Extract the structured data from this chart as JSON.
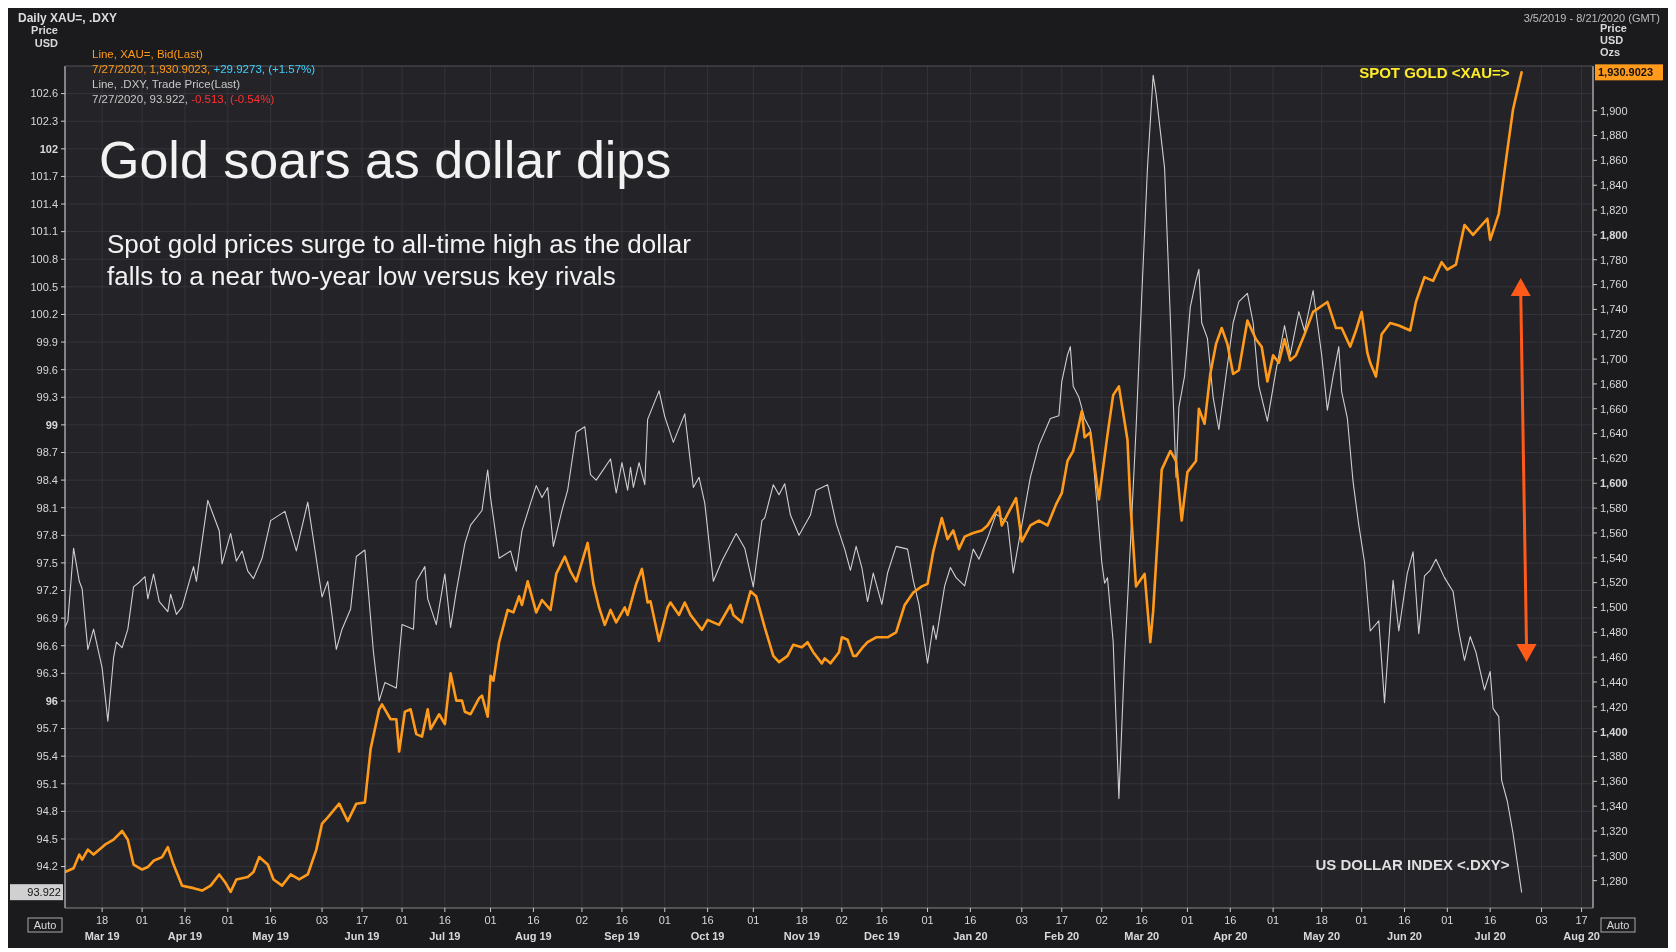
{
  "chart_data": {
    "type": "line",
    "title": "Gold soars as dollar dips",
    "subtitle": "Spot gold prices surge to all-time high as the dollar falls to a near two-year low versus key rivals",
    "ylabel": "Price USD",
    "y2label": "Price USD Ozs",
    "grid": true,
    "annotations": [
      "Daily XAU=, .DXY",
      "3/5/2019 - 8/21/2020 (GMT)",
      "Line, XAU=, Bid(Last)",
      "7/27/2020, 1,930.9023, +29.9273, (+1.57%)",
      "Line, .DXY, Trade Price(Last)",
      "7/27/2020, 93.922, -0.513, (-0.54%)",
      "93.922",
      "1,930.9023",
      "Auto",
      "Auto"
    ],
    "xlim": [
      "2019-03-05",
      "2020-08-21"
    ],
    "xticks": [
      {
        "value": "2019-03-18",
        "label": "18\nMar 19"
      },
      {
        "value": "2019-04-01",
        "label": "01"
      },
      {
        "value": "2019-04-16",
        "label": "16\nApr 19"
      },
      {
        "value": "2019-05-01",
        "label": "01"
      },
      {
        "value": "2019-05-16",
        "label": "16\nMay 19"
      },
      {
        "value": "2019-06-03",
        "label": "03"
      },
      {
        "value": "2019-06-17",
        "label": "17\nJun 19"
      },
      {
        "value": "2019-07-01",
        "label": "01"
      },
      {
        "value": "2019-07-16",
        "label": "16\nJul 19"
      },
      {
        "value": "2019-08-01",
        "label": "01"
      },
      {
        "value": "2019-08-16",
        "label": "16\nAug 19"
      },
      {
        "value": "2019-09-02",
        "label": "02"
      },
      {
        "value": "2019-09-16",
        "label": "16\nSep 19"
      },
      {
        "value": "2019-10-01",
        "label": "01"
      },
      {
        "value": "2019-10-16",
        "label": "16\nOct 19"
      },
      {
        "value": "2019-11-01",
        "label": "01"
      },
      {
        "value": "2019-11-18",
        "label": "18\nNov 19"
      },
      {
        "value": "2019-12-02",
        "label": "02"
      },
      {
        "value": "2019-12-16",
        "label": "16\nDec 19"
      },
      {
        "value": "2020-01-01",
        "label": "01"
      },
      {
        "value": "2020-01-16",
        "label": "16\nJan 20"
      },
      {
        "value": "2020-02-03",
        "label": "03"
      },
      {
        "value": "2020-02-17",
        "label": "17\nFeb 20"
      },
      {
        "value": "2020-03-02",
        "label": "02"
      },
      {
        "value": "2020-03-16",
        "label": "16\nMar 20"
      },
      {
        "value": "2020-04-01",
        "label": "01"
      },
      {
        "value": "2020-04-16",
        "label": "16\nApr 20"
      },
      {
        "value": "2020-05-01",
        "label": "01"
      },
      {
        "value": "2020-05-18",
        "label": "18\nMay 20"
      },
      {
        "value": "2020-06-01",
        "label": "01"
      },
      {
        "value": "2020-06-16",
        "label": "16\nJun 20"
      },
      {
        "value": "2020-07-01",
        "label": "01"
      },
      {
        "value": "2020-07-16",
        "label": "16\nJul 20"
      },
      {
        "value": "2020-08-03",
        "label": "03"
      },
      {
        "value": "2020-08-17",
        "label": "17\nAug 20"
      }
    ],
    "ylim": [
      93.75,
      102.9
    ],
    "yticks": [
      94.2,
      94.5,
      94.8,
      95.1,
      95.4,
      95.7,
      96,
      96.3,
      96.6,
      96.9,
      97.2,
      97.5,
      97.8,
      98.1,
      98.4,
      98.7,
      99,
      99.3,
      99.6,
      99.9,
      100.2,
      100.5,
      100.8,
      101.1,
      101.4,
      101.7,
      102,
      102.3,
      102.6
    ],
    "y2lim": [
      1258,
      1936
    ],
    "y2ticks": [
      {
        "value": 1280,
        "label": "1,280"
      },
      {
        "value": 1300,
        "label": "1,300"
      },
      {
        "value": 1320,
        "label": "1,320"
      },
      {
        "value": 1340,
        "label": "1,340"
      },
      {
        "value": 1360,
        "label": "1,360"
      },
      {
        "value": 1380,
        "label": "1,380"
      },
      {
        "value": 1400,
        "label": "1,400"
      },
      {
        "value": 1420,
        "label": "1,420"
      },
      {
        "value": 1440,
        "label": "1,440"
      },
      {
        "value": 1460,
        "label": "1,460"
      },
      {
        "value": 1480,
        "label": "1,480"
      },
      {
        "value": 1500,
        "label": "1,500"
      },
      {
        "value": 1520,
        "label": "1,520"
      },
      {
        "value": 1540,
        "label": "1,540"
      },
      {
        "value": 1560,
        "label": "1,560"
      },
      {
        "value": 1580,
        "label": "1,580"
      },
      {
        "value": 1600,
        "label": "1,600"
      },
      {
        "value": 1620,
        "label": "1,620"
      },
      {
        "value": 1640,
        "label": "1,640"
      },
      {
        "value": 1660,
        "label": "1,660"
      },
      {
        "value": 1680,
        "label": "1,680"
      },
      {
        "value": 1700,
        "label": "1,700"
      },
      {
        "value": 1720,
        "label": "1,720"
      },
      {
        "value": 1740,
        "label": "1,740"
      },
      {
        "value": 1760,
        "label": "1,760"
      },
      {
        "value": 1780,
        "label": "1,780"
      },
      {
        "value": 1800,
        "label": "1,800"
      },
      {
        "value": 1820,
        "label": "1,820"
      },
      {
        "value": 1840,
        "label": "1,840"
      },
      {
        "value": 1860,
        "label": "1,860"
      },
      {
        "value": 1880,
        "label": "1,880"
      },
      {
        "value": 1900,
        "label": "1,900"
      }
    ],
    "series": [
      {
        "name": "US DOLLAR INDEX <.DXY>",
        "color": "#cfcfcf",
        "x": [
          "2019-03-05",
          "2019-03-06",
          "2019-03-08",
          "2019-03-10",
          "2019-03-11",
          "2019-03-13",
          "2019-03-15",
          "2019-03-16",
          "2019-03-18",
          "2019-03-20",
          "2019-03-22",
          "2019-03-23",
          "2019-03-25",
          "2019-03-27",
          "2019-03-29",
          "2019-03-31",
          "2019-04-02",
          "2019-04-03",
          "2019-04-05",
          "2019-04-07",
          "2019-04-10",
          "2019-04-11",
          "2019-04-13",
          "2019-04-15",
          "2019-04-19",
          "2019-04-20",
          "2019-04-24",
          "2019-04-28",
          "2019-04-29",
          "2019-05-02",
          "2019-05-04",
          "2019-05-06",
          "2019-05-08",
          "2019-05-10",
          "2019-05-13",
          "2019-05-16",
          "2019-05-21",
          "2019-05-25",
          "2019-05-29",
          "2019-06-03",
          "2019-06-05",
          "2019-06-08",
          "2019-06-10",
          "2019-06-13",
          "2019-06-15",
          "2019-06-18",
          "2019-06-21",
          "2019-06-23",
          "2019-06-25",
          "2019-06-29",
          "2019-07-01",
          "2019-07-05",
          "2019-07-06",
          "2019-07-09",
          "2019-07-10",
          "2019-07-13",
          "2019-07-16",
          "2019-07-18",
          "2019-07-20",
          "2019-07-23",
          "2019-07-25",
          "2019-07-29",
          "2019-07-31",
          "2019-08-01",
          "2019-08-04",
          "2019-08-08",
          "2019-08-10",
          "2019-08-12",
          "2019-08-15",
          "2019-08-17",
          "2019-08-19",
          "2019-08-21",
          "2019-08-23",
          "2019-08-26",
          "2019-08-28",
          "2019-08-31",
          "2019-09-03",
          "2019-09-05",
          "2019-09-07",
          "2019-09-12",
          "2019-09-14",
          "2019-09-16",
          "2019-09-18",
          "2019-09-19",
          "2019-09-20",
          "2019-09-22",
          "2019-09-24",
          "2019-09-25",
          "2019-09-29",
          "2019-10-01",
          "2019-10-04",
          "2019-10-08",
          "2019-10-11",
          "2019-10-13",
          "2019-10-15",
          "2019-10-18",
          "2019-10-21",
          "2019-10-26",
          "2019-10-29",
          "2019-11-01",
          "2019-11-04",
          "2019-11-05",
          "2019-11-08",
          "2019-11-10",
          "2019-11-12",
          "2019-11-14",
          "2019-11-17",
          "2019-11-21",
          "2019-11-23",
          "2019-11-27",
          "2019-11-30",
          "2019-12-03",
          "2019-12-05",
          "2019-12-07",
          "2019-12-09",
          "2019-12-11",
          "2019-12-13",
          "2019-12-16",
          "2019-12-18",
          "2019-12-21",
          "2019-12-25",
          "2019-12-27",
          "2019-12-29",
          "2020-01-01",
          "2020-01-03",
          "2020-01-04",
          "2020-01-07",
          "2020-01-09",
          "2020-01-11",
          "2020-01-14",
          "2020-01-17",
          "2020-01-19",
          "2020-01-22",
          "2020-01-25",
          "2020-01-29",
          "2020-01-31",
          "2020-02-03",
          "2020-02-06",
          "2020-02-09",
          "2020-02-13",
          "2020-02-16",
          "2020-02-17",
          "2020-02-19",
          "2020-02-20",
          "2020-02-21",
          "2020-02-23",
          "2020-02-25",
          "2020-02-27",
          "2020-02-29",
          "2020-03-02",
          "2020-03-03",
          "2020-03-04",
          "2020-03-06",
          "2020-03-08",
          "2020-03-10",
          "2020-03-12",
          "2020-03-14",
          "2020-03-16",
          "2020-03-18",
          "2020-03-20",
          "2020-03-21",
          "2020-03-24",
          "2020-03-26",
          "2020-03-28",
          "2020-03-29",
          "2020-03-31",
          "2020-04-02",
          "2020-04-04",
          "2020-04-05",
          "2020-04-06",
          "2020-04-08",
          "2020-04-10",
          "2020-04-12",
          "2020-04-14",
          "2020-04-17",
          "2020-04-19",
          "2020-04-22",
          "2020-04-24",
          "2020-04-26",
          "2020-04-29",
          "2020-05-02",
          "2020-05-05",
          "2020-05-07",
          "2020-05-10",
          "2020-05-12",
          "2020-05-15",
          "2020-05-18",
          "2020-05-20",
          "2020-05-22",
          "2020-05-24",
          "2020-05-25",
          "2020-05-27",
          "2020-05-29",
          "2020-05-31",
          "2020-06-02",
          "2020-06-04",
          "2020-06-07",
          "2020-06-09",
          "2020-06-12",
          "2020-06-14",
          "2020-06-17",
          "2020-06-19",
          "2020-06-21",
          "2020-06-23",
          "2020-06-25",
          "2020-06-27",
          "2020-06-30",
          "2020-07-03",
          "2020-07-05",
          "2020-07-07",
          "2020-07-09",
          "2020-07-11",
          "2020-07-14",
          "2020-07-16",
          "2020-07-17",
          "2020-07-19",
          "2020-07-20",
          "2020-07-22",
          "2020-07-24",
          "2020-07-27"
        ],
        "values": [
          96.8,
          96.87,
          97.66,
          97.3,
          97.22,
          96.56,
          96.78,
          96.64,
          96.36,
          95.78,
          96.47,
          96.64,
          96.58,
          96.78,
          97.24,
          97.29,
          97.35,
          97.11,
          97.38,
          97.08,
          96.97,
          97.16,
          96.94,
          97.02,
          97.46,
          97.3,
          98.18,
          97.85,
          97.49,
          97.82,
          97.52,
          97.63,
          97.41,
          97.33,
          97.55,
          97.96,
          98.06,
          97.63,
          98.16,
          97.13,
          97.3,
          96.56,
          96.78,
          97.0,
          97.57,
          97.64,
          96.53,
          96.0,
          96.2,
          96.14,
          96.83,
          96.78,
          97.3,
          97.46,
          97.11,
          96.83,
          97.38,
          96.8,
          97.19,
          97.71,
          97.91,
          98.07,
          98.51,
          98.21,
          97.55,
          97.63,
          97.41,
          97.85,
          98.15,
          98.34,
          98.21,
          98.32,
          97.68,
          98.07,
          98.29,
          98.92,
          98.98,
          98.46,
          98.4,
          98.63,
          98.26,
          98.59,
          98.29,
          98.54,
          98.32,
          98.59,
          98.35,
          99.06,
          99.37,
          99.09,
          98.81,
          99.12,
          98.32,
          98.43,
          98.15,
          97.3,
          97.52,
          97.82,
          97.66,
          97.24,
          97.96,
          97.99,
          98.35,
          98.24,
          98.36,
          98.02,
          97.8,
          98.02,
          98.29,
          98.35,
          97.93,
          97.65,
          97.42,
          97.68,
          97.45,
          97.08,
          97.39,
          97.05,
          97.39,
          97.68,
          97.65,
          97.31,
          97.05,
          96.41,
          96.82,
          96.67,
          97.25,
          97.45,
          97.34,
          97.25,
          97.65,
          97.54,
          97.77,
          98.03,
          97.94,
          97.39,
          97.91,
          98.43,
          98.78,
          99.07,
          99.1,
          99.47,
          99.76,
          99.85,
          99.42,
          99.3,
          99.07,
          98.95,
          98.26,
          97.51,
          97.28,
          97.34,
          96.64,
          94.94,
          96.47,
          97.68,
          98.95,
          100.4,
          101.79,
          102.8,
          102.6,
          101.79,
          100.17,
          98.43,
          99.19,
          99.53,
          100.28,
          100.57,
          100.69,
          100.11,
          99.94,
          99.3,
          98.95,
          99.42,
          100.11,
          100.34,
          100.43,
          100.11,
          99.42,
          99.04,
          99.59,
          100.08,
          99.76,
          100.23,
          100.02,
          100.46,
          99.76,
          99.16,
          99.53,
          99.85,
          99.36,
          99.07,
          98.38,
          97.91,
          97.51,
          96.76,
          96.87,
          95.98,
          97.31,
          96.76,
          97.39,
          97.62,
          96.73,
          97.36,
          97.42,
          97.54,
          97.34,
          97.19,
          96.76,
          96.44,
          96.7,
          96.53,
          96.12,
          96.32,
          95.92,
          95.83,
          95.14,
          94.91,
          94.56,
          93.922
        ]
      },
      {
        "name": "SPOT GOLD <XAU=>",
        "axis": "y2",
        "color": "#ff9a1a",
        "x": [
          "2019-03-05",
          "2019-03-08",
          "2019-03-10",
          "2019-03-11",
          "2019-03-13",
          "2019-03-15",
          "2019-03-19",
          "2019-03-22",
          "2019-03-25",
          "2019-03-27",
          "2019-03-29",
          "2019-04-01",
          "2019-04-03",
          "2019-04-05",
          "2019-04-08",
          "2019-04-10",
          "2019-04-12",
          "2019-04-15",
          "2019-04-19",
          "2019-04-22",
          "2019-04-25",
          "2019-04-28",
          "2019-04-30",
          "2019-05-02",
          "2019-05-04",
          "2019-05-08",
          "2019-05-10",
          "2019-05-12",
          "2019-05-15",
          "2019-05-17",
          "2019-05-20",
          "2019-05-23",
          "2019-05-26",
          "2019-05-29",
          "2019-06-01",
          "2019-06-03",
          "2019-06-05",
          "2019-06-09",
          "2019-06-12",
          "2019-06-15",
          "2019-06-18",
          "2019-06-20",
          "2019-06-23",
          "2019-06-24",
          "2019-06-27",
          "2019-06-29",
          "2019-06-30",
          "2019-07-02",
          "2019-07-04",
          "2019-07-06",
          "2019-07-08",
          "2019-07-10",
          "2019-07-11",
          "2019-07-14",
          "2019-07-16",
          "2019-07-18",
          "2019-07-20",
          "2019-07-22",
          "2019-07-23",
          "2019-07-25",
          "2019-07-28",
          "2019-07-29",
          "2019-07-31",
          "2019-08-01",
          "2019-08-02",
          "2019-08-04",
          "2019-08-07",
          "2019-08-09",
          "2019-08-11",
          "2019-08-12",
          "2019-08-14",
          "2019-08-17",
          "2019-08-19",
          "2019-08-22",
          "2019-08-24",
          "2019-08-27",
          "2019-08-29",
          "2019-08-31",
          "2019-09-04",
          "2019-09-06",
          "2019-09-08",
          "2019-09-10",
          "2019-09-12",
          "2019-09-14",
          "2019-09-17",
          "2019-09-18",
          "2019-09-21",
          "2019-09-23",
          "2019-09-25",
          "2019-09-26",
          "2019-09-29",
          "2019-10-02",
          "2019-10-03",
          "2019-10-06",
          "2019-10-08",
          "2019-10-10",
          "2019-10-14",
          "2019-10-16",
          "2019-10-20",
          "2019-10-24",
          "2019-10-25",
          "2019-10-28",
          "2019-10-31",
          "2019-11-02",
          "2019-11-05",
          "2019-11-08",
          "2019-11-10",
          "2019-11-13",
          "2019-11-15",
          "2019-11-18",
          "2019-11-20",
          "2019-11-22",
          "2019-11-25",
          "2019-11-26",
          "2019-11-28",
          "2019-12-01",
          "2019-12-02",
          "2019-12-04",
          "2019-12-06",
          "2019-12-07",
          "2019-12-09",
          "2019-12-11",
          "2019-12-14",
          "2019-12-18",
          "2019-12-21",
          "2019-12-24",
          "2019-12-27",
          "2019-12-30",
          "2020-01-01",
          "2020-01-03",
          "2020-01-06",
          "2020-01-08",
          "2020-01-10",
          "2020-01-12",
          "2020-01-14",
          "2020-01-17",
          "2020-01-20",
          "2020-01-22",
          "2020-01-26",
          "2020-01-27",
          "2020-01-29",
          "2020-02-01",
          "2020-02-03",
          "2020-02-06",
          "2020-02-09",
          "2020-02-12",
          "2020-02-15",
          "2020-02-17",
          "2020-02-19",
          "2020-02-21",
          "2020-02-24",
          "2020-02-25",
          "2020-02-27",
          "2020-03-01",
          "2020-03-04",
          "2020-03-06",
          "2020-03-08",
          "2020-03-11",
          "2020-03-12",
          "2020-03-14",
          "2020-03-17",
          "2020-03-19",
          "2020-03-20",
          "2020-03-23",
          "2020-03-26",
          "2020-03-28",
          "2020-03-30",
          "2020-04-01",
          "2020-04-04",
          "2020-04-05",
          "2020-04-07",
          "2020-04-09",
          "2020-04-11",
          "2020-04-13",
          "2020-04-15",
          "2020-04-17",
          "2020-04-19",
          "2020-04-22",
          "2020-04-25",
          "2020-04-27",
          "2020-04-29",
          "2020-05-01",
          "2020-05-03",
          "2020-05-05",
          "2020-05-07",
          "2020-05-09",
          "2020-05-12",
          "2020-05-15",
          "2020-05-20",
          "2020-05-23",
          "2020-05-25",
          "2020-05-28",
          "2020-05-30",
          "2020-06-01",
          "2020-06-03",
          "2020-06-04",
          "2020-06-06",
          "2020-06-08",
          "2020-06-11",
          "2020-06-14",
          "2020-06-18",
          "2020-06-20",
          "2020-06-23",
          "2020-06-26",
          "2020-06-29",
          "2020-07-01",
          "2020-07-04",
          "2020-07-07",
          "2020-07-10",
          "2020-07-15",
          "2020-07-16",
          "2020-07-19",
          "2020-07-22",
          "2020-07-24",
          "2020-07-27"
        ],
        "values": [
          1287,
          1290,
          1301,
          1297,
          1305,
          1301,
          1309,
          1313,
          1320,
          1313,
          1293,
          1289,
          1291,
          1296,
          1299,
          1307,
          1293,
          1276,
          1274,
          1272,
          1276,
          1285,
          1279,
          1271,
          1281,
          1283,
          1287,
          1299,
          1293,
          1281,
          1276,
          1285,
          1281,
          1285,
          1305,
          1326,
          1331,
          1342,
          1328,
          1342,
          1343,
          1386,
          1418,
          1422,
          1410,
          1410,
          1384,
          1416,
          1418,
          1398,
          1396,
          1418,
          1402,
          1414,
          1406,
          1447,
          1425,
          1425,
          1416,
          1414,
          1427,
          1429,
          1412,
          1445,
          1441,
          1472,
          1498,
          1496,
          1509,
          1502,
          1521,
          1496,
          1506,
          1498,
          1527,
          1541,
          1529,
          1521,
          1552,
          1519,
          1500,
          1486,
          1498,
          1488,
          1500,
          1494,
          1519,
          1531,
          1504,
          1505,
          1473,
          1500,
          1504,
          1494,
          1504,
          1494,
          1482,
          1490,
          1486,
          1502,
          1494,
          1488,
          1513,
          1509,
          1484,
          1461,
          1456,
          1461,
          1470,
          1468,
          1472,
          1464,
          1455,
          1459,
          1455,
          1464,
          1476,
          1474,
          1461,
          1461,
          1467,
          1472,
          1476,
          1476,
          1480,
          1502,
          1512,
          1517,
          1519,
          1545,
          1572,
          1555,
          1562,
          1547,
          1557,
          1560,
          1562,
          1566,
          1581,
          1566,
          1575,
          1588,
          1553,
          1566,
          1570,
          1566,
          1583,
          1592,
          1618,
          1626,
          1658,
          1637,
          1641,
          1587,
          1639,
          1671,
          1678,
          1635,
          1585,
          1517,
          1527,
          1472,
          1497,
          1611,
          1626,
          1618,
          1570,
          1609,
          1618,
          1660,
          1648,
          1688,
          1712,
          1725,
          1712,
          1688,
          1691,
          1731,
          1716,
          1710,
          1682,
          1703,
          1697,
          1716,
          1699,
          1703,
          1720,
          1738,
          1746,
          1725,
          1725,
          1710,
          1723,
          1738,
          1705,
          1697,
          1686,
          1720,
          1729,
          1727,
          1723,
          1746,
          1766,
          1763,
          1778,
          1772,
          1776,
          1808,
          1800,
          1813,
          1796,
          1817,
          1868,
          1901,
          1930.9
        ]
      }
    ]
  }
}
